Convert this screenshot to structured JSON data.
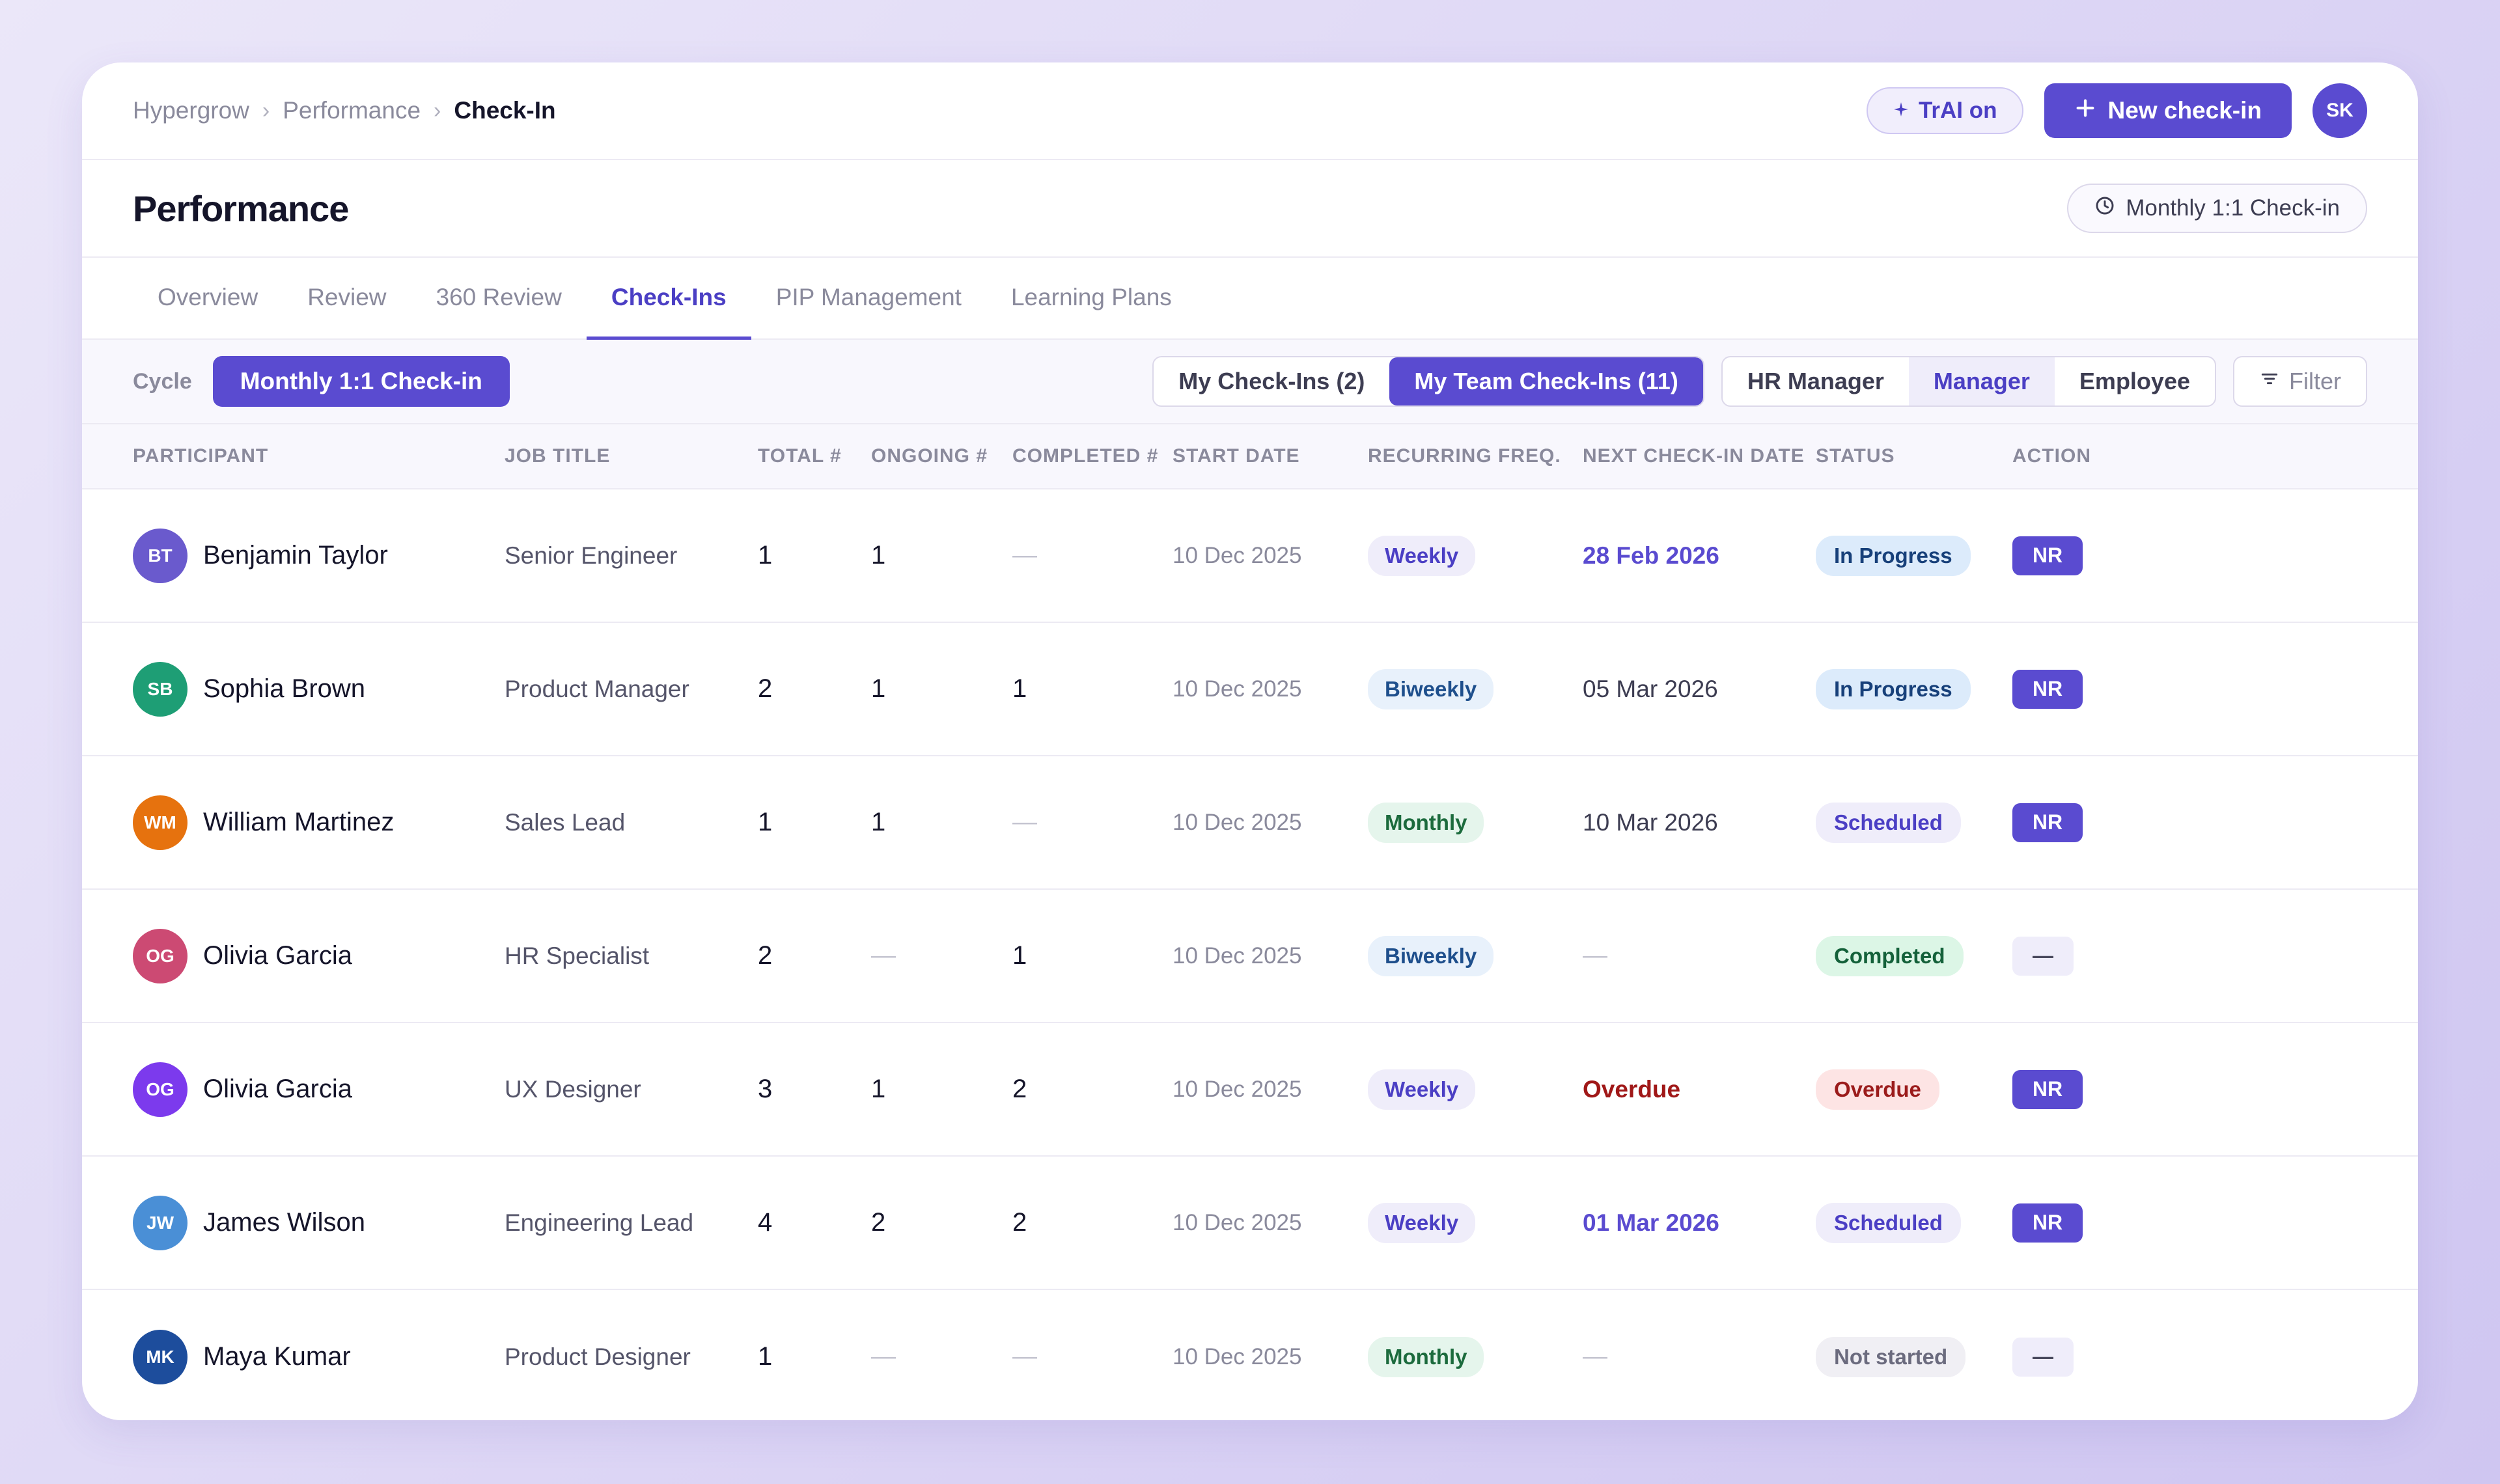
{
  "breadcrumb": [
    "Hypergrow",
    "Performance",
    "Check-In"
  ],
  "breadcrumb_sep": "›",
  "header_actions": {
    "trai_label": "TrAI on",
    "trai_icon": "sparkle-icon",
    "new_checkin_label": "New check-in",
    "new_checkin_icon": "plus-icon",
    "user_initials": "SK"
  },
  "page": {
    "title": "Performance",
    "cycle_pill": "Monthly 1:1 Check-in",
    "cycle_pill_icon": "clock-icon"
  },
  "tabs": [
    {
      "label": "Overview",
      "active": false
    },
    {
      "label": "Review",
      "active": false
    },
    {
      "label": "360 Review",
      "active": false
    },
    {
      "label": "Check-Ins",
      "active": true
    },
    {
      "label": "PIP Management",
      "active": false
    },
    {
      "label": "Learning Plans",
      "active": false
    }
  ],
  "filters": {
    "cycle_label": "Cycle",
    "cycle_value": "Monthly 1:1 Check-in",
    "scope": [
      {
        "label": "My Check-Ins (2)",
        "active": false
      },
      {
        "label": "My Team Check-Ins (11)",
        "active": true
      }
    ],
    "roles": [
      {
        "label": "HR Manager",
        "active": false
      },
      {
        "label": "Manager",
        "active": true
      },
      {
        "label": "Employee",
        "active": false
      }
    ],
    "filter_label": "Filter",
    "filter_icon": "filter-icon"
  },
  "table": {
    "columns": [
      "PARTICIPANT",
      "JOB TITLE",
      "TOTAL #",
      "ONGOING #",
      "COMPLETED #",
      "START DATE",
      "RECURRING FREQ.",
      "NEXT CHECK-IN DATE",
      "STATUS",
      "ACTION"
    ],
    "rows": [
      {
        "initials": "BT",
        "avatar_color": "#6a5acd",
        "name": "Benjamin Taylor",
        "job": "Senior Engineer",
        "total": "1",
        "ongoing": "1",
        "completed": "—",
        "start": "10 Dec 2025",
        "freq": "Weekly",
        "next": "28 Feb 2026",
        "next_style": "accent",
        "status": "In Progress",
        "status_style": "progress",
        "action": "NR"
      },
      {
        "initials": "SB",
        "avatar_color": "#1e9e75",
        "name": "Sophia Brown",
        "job": "Product Manager",
        "total": "2",
        "ongoing": "1",
        "completed": "1",
        "start": "10 Dec 2025",
        "freq": "Biweekly",
        "next": "05 Mar 2026",
        "next_style": "plain",
        "status": "In Progress",
        "status_style": "progress",
        "action": "NR"
      },
      {
        "initials": "WM",
        "avatar_color": "#e6720e",
        "name": "William Martinez",
        "job": "Sales Lead",
        "total": "1",
        "ongoing": "1",
        "completed": "—",
        "start": "10 Dec 2025",
        "freq": "Monthly",
        "next": "10 Mar 2026",
        "next_style": "plain",
        "status": "Scheduled",
        "status_style": "scheduled",
        "action": "NR"
      },
      {
        "initials": "OG",
        "avatar_color": "#cc4a73",
        "name": "Olivia Garcia",
        "job": "HR Specialist",
        "total": "2",
        "ongoing": "—",
        "completed": "1",
        "start": "10 Dec 2025",
        "freq": "Biweekly",
        "next": "—",
        "next_style": "dash",
        "status": "Completed",
        "status_style": "completed",
        "action": "—"
      },
      {
        "initials": "OG",
        "avatar_color": "#7c3aed",
        "name": "Olivia Garcia",
        "job": "UX Designer",
        "total": "3",
        "ongoing": "1",
        "completed": "2",
        "start": "10 Dec 2025",
        "freq": "Weekly",
        "next": "Overdue",
        "next_style": "overdue",
        "status": "Overdue",
        "status_style": "overdue",
        "action": "NR"
      },
      {
        "initials": "JW",
        "avatar_color": "#4a8fd6",
        "name": "James Wilson",
        "job": "Engineering Lead",
        "total": "4",
        "ongoing": "2",
        "completed": "2",
        "start": "10 Dec 2025",
        "freq": "Weekly",
        "next": "01 Mar 2026",
        "next_style": "accent",
        "status": "Scheduled",
        "status_style": "scheduled",
        "action": "NR"
      },
      {
        "initials": "MK",
        "avatar_color": "#1d4d9c",
        "name": "Maya Kumar",
        "job": "Product Designer",
        "total": "1",
        "ongoing": "—",
        "completed": "—",
        "start": "10 Dec 2025",
        "freq": "Monthly",
        "next": "—",
        "next_style": "dash",
        "status": "Not started",
        "status_style": "notstarted",
        "action": "—"
      }
    ]
  },
  "colors": {
    "accent": "#5a4bd0",
    "background": "#ddd6f5",
    "overdue": "#a01818"
  }
}
